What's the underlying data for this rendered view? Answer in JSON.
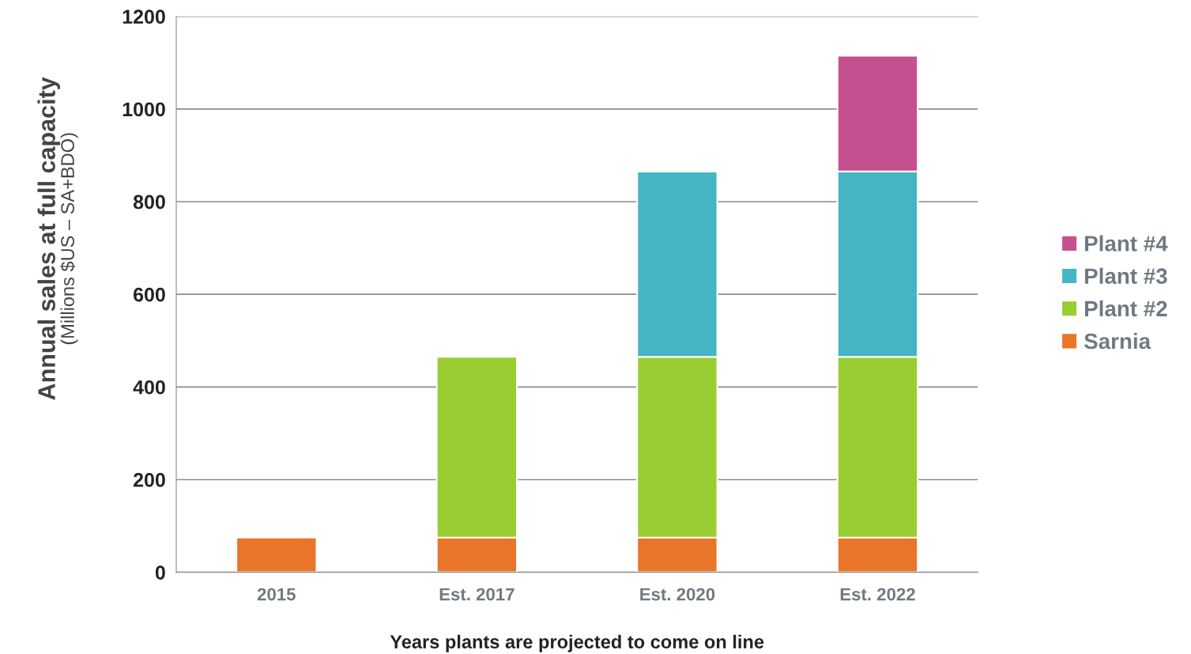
{
  "chart_data": {
    "type": "bar",
    "stacked": true,
    "categories": [
      "2015",
      "Est. 2017",
      "Est. 2020",
      "Est. 2022"
    ],
    "series": [
      {
        "name": "Sarnia",
        "color": "#e8752a",
        "values": [
          75,
          75,
          75,
          75
        ]
      },
      {
        "name": "Plant #2",
        "color": "#9acd32",
        "values": [
          null,
          390,
          390,
          390
        ]
      },
      {
        "name": "Plant #3",
        "color": "#45b5c4",
        "values": [
          null,
          null,
          400,
          400
        ]
      },
      {
        "name": "Plant #4",
        "color": "#c6508f",
        "values": [
          null,
          null,
          null,
          250
        ]
      }
    ],
    "ylabel": "Annual sales at full capacity",
    "annotations": [
      "(Millions $US – SA+BDO)"
    ],
    "xlabel": "Years plants are projected to come on line",
    "ylim": [
      0,
      1200
    ],
    "yticks": [
      0,
      200,
      400,
      600,
      800,
      1000,
      1200
    ],
    "grid": "y",
    "legend": "right"
  }
}
